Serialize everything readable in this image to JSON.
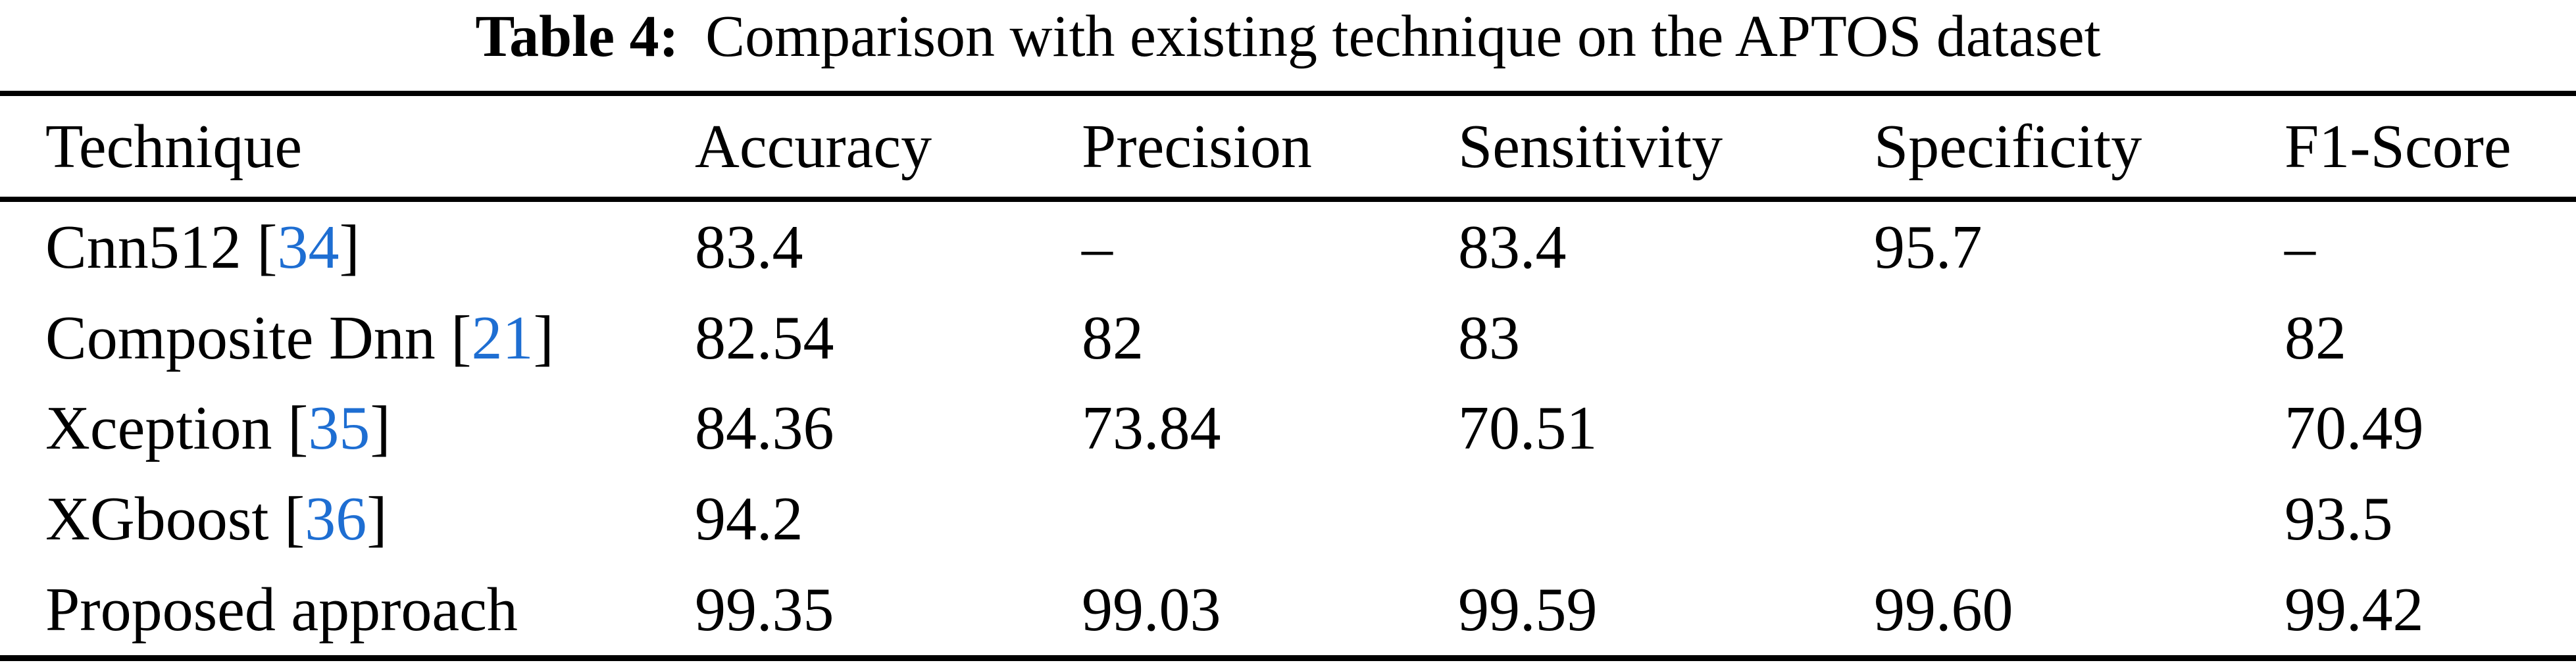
{
  "caption": {
    "label": "Table 4:",
    "text": "Comparison with existing technique on the APTOS dataset"
  },
  "table": {
    "columns": [
      "Technique",
      "Accuracy",
      "Precision",
      "Sensitivity",
      "Specificity",
      "F1-Score"
    ],
    "rows": [
      {
        "technique": "Cnn512",
        "citation": "34",
        "values": [
          "83.4",
          "–",
          "83.4",
          "95.7",
          "–"
        ]
      },
      {
        "technique": "Composite Dnn",
        "citation": "21",
        "values": [
          "82.54",
          "82",
          "83",
          "",
          "82"
        ]
      },
      {
        "technique": "Xception",
        "citation": "35",
        "values": [
          "84.36",
          "73.84",
          "70.51",
          "",
          "70.49"
        ]
      },
      {
        "technique": "XGboost",
        "citation": "36",
        "values": [
          "94.2",
          "",
          "",
          "",
          "93.5"
        ]
      },
      {
        "technique": "Proposed approach",
        "citation": "",
        "values": [
          "99.35",
          "99.03",
          "99.59",
          "99.60",
          "99.42"
        ]
      }
    ],
    "link_color": "#1e6ed2",
    "rule_color": "#000000"
  }
}
